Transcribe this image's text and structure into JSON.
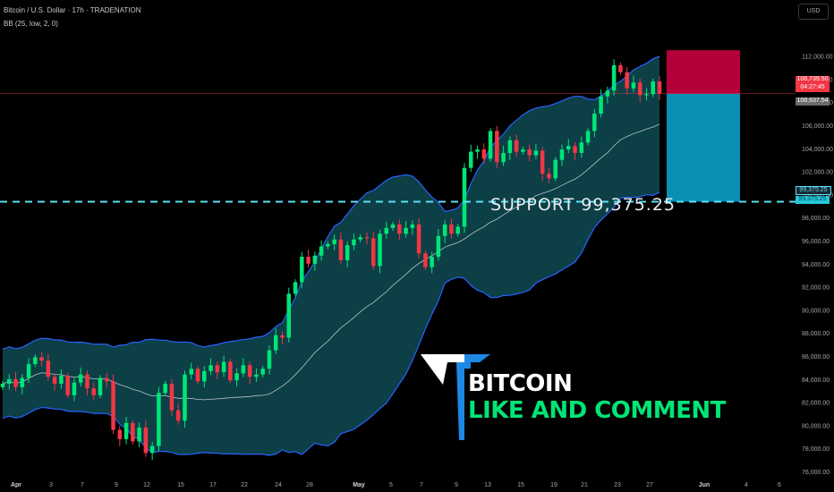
{
  "header": {
    "symbol_line": "Bitcoin / U.S. Dollar · 17h · TRADENATION",
    "indicator_line": "BB (25, low, 2, 0)"
  },
  "currency_button": "USD",
  "support_text": "SUPPORT  99,375.25",
  "logo": {
    "line1": "BITCOIN",
    "line2": "LIKE AND COMMENT",
    "icon": "logo-T-icon"
  },
  "price_labels": {
    "current": "108,739.50",
    "countdown": "04:27:45",
    "bb_upper": "108,637.54",
    "support_a": "99,375.25",
    "support_b": "99,375.25"
  },
  "colors": {
    "up": "#089981",
    "up_body": "#00e676",
    "down": "#f23645",
    "band_fill": "#0e4a52",
    "band_line": "#2962ff",
    "support": "#5ce1f5",
    "stop_zone": "#b5003a",
    "target_zone": "#0a8fb5"
  },
  "chart_data": {
    "type": "candlestick",
    "y_axis": {
      "min": 75000,
      "max": 113000,
      "ticks": [
        "76,000.00",
        "78,000.00",
        "80,000.00",
        "82,000.00",
        "84,000.00",
        "86,000.00",
        "88,000.00",
        "90,000.00",
        "92,000.00",
        "94,000.00",
        "96,000.00",
        "98,000.00",
        "100,000.00",
        "102,000.00",
        "104,000.00",
        "106,000.00",
        "108,000.00",
        "110,000.00",
        "112,000.00"
      ]
    },
    "x_axis": {
      "ticks": [
        "Apr",
        "3",
        "7",
        "9",
        "12",
        "15",
        "17",
        "22",
        "24",
        "28",
        "May",
        "5",
        "7",
        "9",
        "13",
        "15",
        "19",
        "21",
        "23",
        "27",
        "Jun",
        "4",
        "6"
      ]
    },
    "support_level": 99375.25,
    "current_price": 108739.5,
    "position": {
      "entry": 108739.5,
      "stop": 112500,
      "target": 99375.25
    },
    "closes": [
      83600,
      84000,
      83300,
      84100,
      85300,
      85900,
      85600,
      84200,
      83600,
      84300,
      82600,
      83700,
      84400,
      83200,
      82600,
      84100,
      83800,
      79600,
      78800,
      80200,
      78600,
      79800,
      77600,
      78200,
      82800,
      83600,
      81300,
      80400,
      84400,
      84900,
      83800,
      84700,
      85200,
      84600,
      85500,
      83900,
      84500,
      85200,
      84200,
      84400,
      84900,
      86500,
      87800,
      87600,
      91400,
      92400,
      94600,
      94000,
      94700,
      95500,
      95700,
      96100,
      94300,
      95600,
      96100,
      96300,
      96200,
      93800,
      96600,
      97100,
      97400,
      96600,
      97100,
      97400,
      94900,
      93700,
      94600,
      96400,
      97400,
      96600,
      97200,
      102300,
      103700,
      103900,
      103100,
      105500,
      102800,
      103600,
      104700,
      103700,
      103900,
      103400,
      103800,
      101800,
      101400,
      103000,
      103900,
      104200,
      103600,
      104500,
      105500,
      107000,
      108500,
      109000,
      111200,
      110600,
      109200,
      109700,
      108600,
      108700,
      109800,
      108739
    ]
  }
}
